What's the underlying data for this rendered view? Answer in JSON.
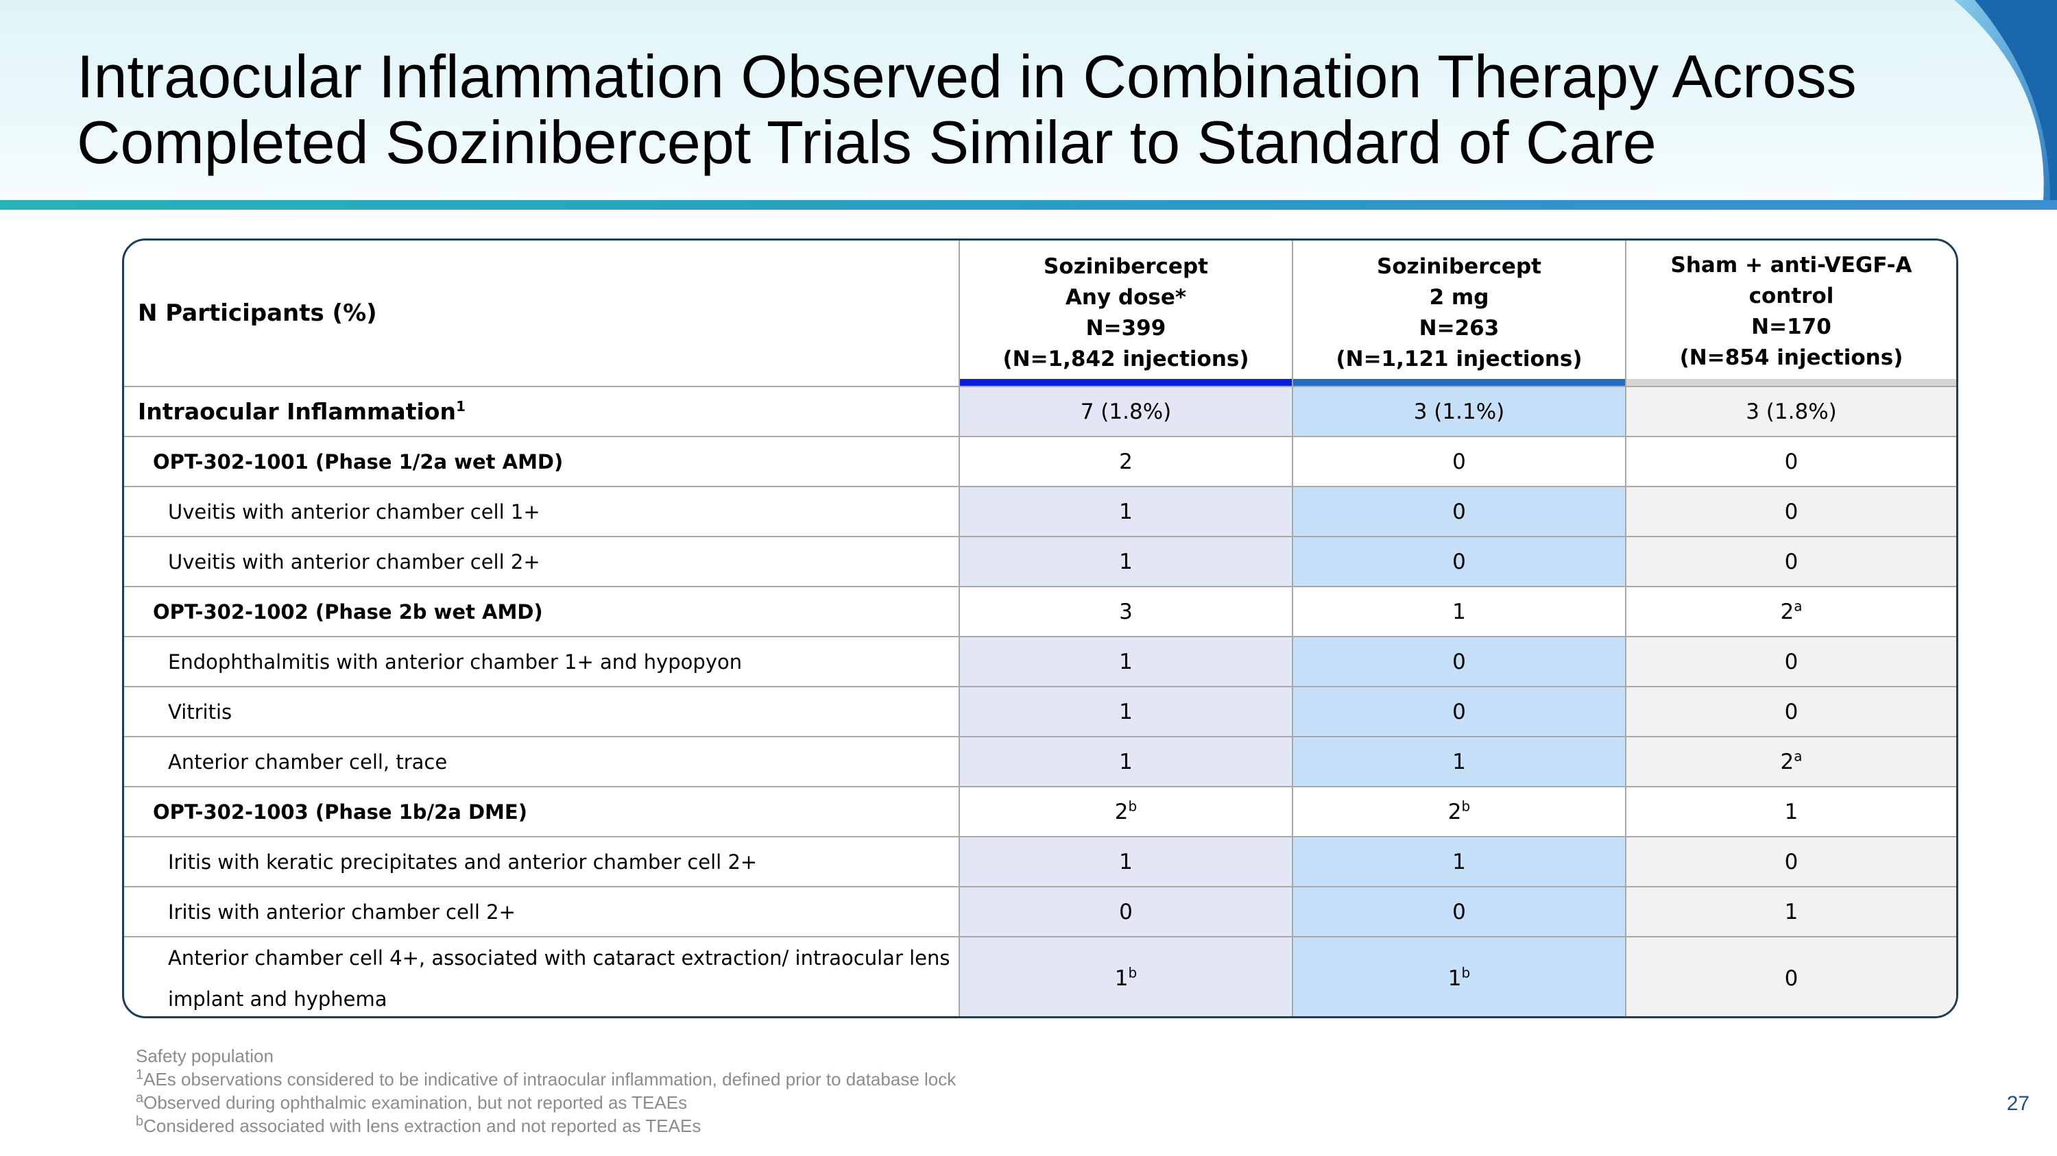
{
  "slide": {
    "title_lines": [
      "Intraocular Inflammation Observed in Combination Therapy Across",
      "Completed Sozinibercept Trials Similar to Standard of Care"
    ],
    "page_number": "27"
  },
  "table": {
    "header_label": "N Participants (%)",
    "columns": [
      {
        "lines": [
          "Sozinibercept",
          "Any dose*",
          "N=399",
          "(N=1,842 injections)"
        ],
        "accent": "#0a1fd9"
      },
      {
        "lines": [
          "Sozinibercept",
          "2 mg",
          "N=263",
          "(N=1,121 injections)"
        ],
        "accent": "#1e6fc0"
      },
      {
        "lines": [
          "Sham + anti-VEGF-A control",
          "N=170",
          "(N=854 injections)"
        ],
        "accent": "#d6d6d6"
      }
    ],
    "rows": [
      {
        "label": "Intraocular Inflammation",
        "label_sup": "1",
        "values": [
          "7 (1.8%)",
          "3 (1.1%)",
          "3 (1.8%)"
        ],
        "sups": [
          "",
          "",
          ""
        ]
      },
      {
        "label": "OPT-302-1001 (Phase 1/2a wet AMD)",
        "label_sup": "",
        "values": [
          "2",
          "0",
          "0"
        ],
        "sups": [
          "",
          "",
          ""
        ]
      },
      {
        "label": "Uveitis with anterior chamber cell 1+",
        "label_sup": "",
        "values": [
          "1",
          "0",
          "0"
        ],
        "sups": [
          "",
          "",
          ""
        ]
      },
      {
        "label": "Uveitis with anterior chamber cell 2+",
        "label_sup": "",
        "values": [
          "1",
          "0",
          "0"
        ],
        "sups": [
          "",
          "",
          ""
        ]
      },
      {
        "label": "OPT-302-1002 (Phase 2b wet AMD)",
        "label_sup": "",
        "values": [
          "3",
          "1",
          "2"
        ],
        "sups": [
          "",
          "",
          "a"
        ]
      },
      {
        "label": "Endophthalmitis with anterior chamber 1+ and hypopyon",
        "label_sup": "",
        "values": [
          "1",
          "0",
          "0"
        ],
        "sups": [
          "",
          "",
          ""
        ]
      },
      {
        "label": "Vitritis",
        "label_sup": "",
        "values": [
          "1",
          "0",
          "0"
        ],
        "sups": [
          "",
          "",
          ""
        ]
      },
      {
        "label": "Anterior chamber cell, trace",
        "label_sup": "",
        "values": [
          "1",
          "1",
          "2"
        ],
        "sups": [
          "",
          "",
          "a"
        ]
      },
      {
        "label": "OPT-302-1003 (Phase 1b/2a DME)",
        "label_sup": "",
        "values": [
          "2",
          "2",
          "1"
        ],
        "sups": [
          "b",
          "b",
          ""
        ]
      },
      {
        "label": "Iritis with keratic precipitates and anterior chamber cell 2+",
        "label_sup": "",
        "values": [
          "1",
          "1",
          "0"
        ],
        "sups": [
          "",
          "",
          ""
        ]
      },
      {
        "label": "Iritis with anterior chamber cell 2+",
        "label_sup": "",
        "values": [
          "0",
          "0",
          "1"
        ],
        "sups": [
          "",
          "",
          ""
        ]
      },
      {
        "label": "Anterior chamber cell 4+, associated with cataract extraction/ intraocular lens implant and hyphema",
        "label_sup": "",
        "values": [
          "1",
          "1",
          "0"
        ],
        "sups": [
          "b",
          "b",
          ""
        ]
      }
    ]
  },
  "footnotes": {
    "safety": "Safety population",
    "n1": {
      "mark": "1",
      "text": "AEs observations considered to be indicative of intraocular inflammation, defined prior to database lock"
    },
    "na": {
      "mark": "a",
      "text": "Observed during ophthalmic examination, but not reported as TEAEs"
    },
    "nb": {
      "mark": "b",
      "text": "Considered associated with lens extraction and not reported as TEAEs"
    }
  },
  "colors": {
    "col1_fill": "#e2e6f5",
    "col2_fill": "#c6e0fa",
    "col3_fill": "#f2f2f2",
    "table_border": "#1c3c5a",
    "header_rule": "#2a98c9"
  }
}
